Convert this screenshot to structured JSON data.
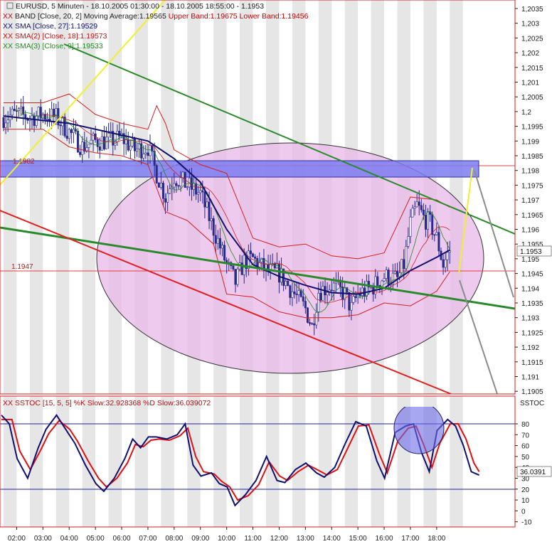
{
  "main": {
    "header": {
      "line1": "EURUSD, 5 Minuten - 18.10.2005 01:30:00 - 18.10.2005 18:55:00 - 1.1953",
      "line2a": "BAND [Close, 20, 2] Moving Average:1.19565",
      "line2b": "Upper Band:1.19675 Lower Band:1.19456",
      "line3": "SMA [Close, 27]:1.19529",
      "line4": "SMA(2) [Close, 18]:1.19573",
      "line5": "SMA(3) [Close, 9]:1.19533"
    },
    "price_tags": {
      "last": "1.1953",
      "zone": "1.1982",
      "support": "1.1947"
    }
  },
  "stoch": {
    "header": "SSTOC [15, 5, 5] %K Slow:32.928368 %D Slow:36.039072",
    "axis_title": "SSTOC",
    "value_tag": "36.0391"
  },
  "colors": {
    "up_candle": "#2a2a8a",
    "down_candle": "#2a2a8a",
    "bollinger": "#d02020",
    "sma27": "#10106e",
    "sma18": "#cc2020",
    "sma9": "#1e8a1e",
    "stoch_k": "#101070",
    "stoch_d": "#e01010",
    "ellipse_fill": "#e8b8e8",
    "zone_fill": "#7c7cf0",
    "trend_green": "#2a8a2a",
    "trend_red": "#e02020",
    "trend_yellow": "#f0f030",
    "trend_gray": "#8c8c8c"
  },
  "chart_data": [
    {
      "type": "candlestick",
      "title": "EURUSD, 5 Minuten - 18.10.2005 01:30:00 - 18.10.2005 18:55:00 - 1.1953",
      "x_tick_labels": [
        "02:00",
        "03:00",
        "04:00",
        "05:00",
        "06:00",
        "07:00",
        "08:00",
        "09:00",
        "10:00",
        "11:00",
        "12:00",
        "13:00",
        "14:00",
        "15:00",
        "16:00",
        "17:00",
        "18:00"
      ],
      "y_tick_labels": [
        "1,2035",
        "1,203",
        "1,2025",
        "1,202",
        "1,2015",
        "1,201",
        "1,2005",
        "1,2",
        "1,1995",
        "1,199",
        "1,1985",
        "1,198",
        "1,1975",
        "1,197",
        "1,1965",
        "1,196",
        "1,1955",
        "1,195",
        "1,1945",
        "1,194",
        "1,1935",
        "1,193",
        "1,1925",
        "1,192",
        "1,1915",
        "1,191",
        "1,1905"
      ],
      "ylim": [
        1.1905,
        1.2038
      ],
      "last_price": 1.1953,
      "levels": [
        1.1982,
        1.1947
      ],
      "zone": [
        1.19775,
        1.1983
      ],
      "close_path": [
        [
          "01:30",
          1.1998
        ],
        [
          "02:00",
          1.1999
        ],
        [
          "02:30",
          1.1998
        ],
        [
          "03:00",
          1.1999
        ],
        [
          "03:30",
          1.1998
        ],
        [
          "04:00",
          1.1993
        ],
        [
          "04:30",
          1.1988
        ],
        [
          "05:00",
          1.199
        ],
        [
          "05:30",
          1.199
        ],
        [
          "06:00",
          1.1991
        ],
        [
          "06:30",
          1.1987
        ],
        [
          "07:00",
          1.1988
        ],
        [
          "07:15",
          1.1981
        ],
        [
          "07:40",
          1.1971
        ],
        [
          "08:00",
          1.1978
        ],
        [
          "08:30",
          1.1975
        ],
        [
          "09:00",
          1.1972
        ],
        [
          "09:30",
          1.196
        ],
        [
          "10:00",
          1.1948
        ],
        [
          "10:20",
          1.1942
        ],
        [
          "10:40",
          1.1949
        ],
        [
          "11:00",
          1.195
        ],
        [
          "11:30",
          1.1946
        ],
        [
          "12:00",
          1.1945
        ],
        [
          "12:30",
          1.1939
        ],
        [
          "13:00",
          1.1933
        ],
        [
          "13:15",
          1.1927
        ],
        [
          "13:30",
          1.1939
        ],
        [
          "14:00",
          1.1941
        ],
        [
          "14:30",
          1.1938
        ],
        [
          "14:45",
          1.1933
        ],
        [
          "15:00",
          1.1938
        ],
        [
          "15:30",
          1.194
        ],
        [
          "16:00",
          1.1944
        ],
        [
          "16:30",
          1.1943
        ],
        [
          "16:45",
          1.1948
        ],
        [
          "17:00",
          1.1962
        ],
        [
          "17:15",
          1.1968
        ],
        [
          "17:30",
          1.1964
        ],
        [
          "17:45",
          1.1962
        ],
        [
          "18:00",
          1.1957
        ],
        [
          "18:15",
          1.1948
        ],
        [
          "18:30",
          1.1953
        ]
      ],
      "sma27_path": [
        [
          "01:30",
          1.19985
        ],
        [
          "04:00",
          1.1996
        ],
        [
          "05:30",
          1.1993
        ],
        [
          "07:00",
          1.199
        ],
        [
          "08:00",
          1.1984
        ],
        [
          "09:00",
          1.1976
        ],
        [
          "10:00",
          1.196
        ],
        [
          "11:00",
          1.1948
        ],
        [
          "12:00",
          1.1944
        ],
        [
          "13:00",
          1.1941
        ],
        [
          "14:00",
          1.19385
        ],
        [
          "15:00",
          1.1938
        ],
        [
          "16:00",
          1.194
        ],
        [
          "17:00",
          1.1946
        ],
        [
          "18:00",
          1.19505
        ],
        [
          "18:30",
          1.1953
        ]
      ],
      "bollinger_upper_path": [
        [
          "01:30",
          1.2003
        ],
        [
          "03:00",
          1.2003
        ],
        [
          "04:00",
          1.2006
        ],
        [
          "05:00",
          1.1999
        ],
        [
          "06:00",
          1.1996
        ],
        [
          "07:00",
          1.1994
        ],
        [
          "07:20",
          1.2002
        ],
        [
          "07:40",
          1.1996
        ],
        [
          "08:00",
          1.1987
        ],
        [
          "09:00",
          1.1982
        ],
        [
          "10:00",
          1.1979
        ],
        [
          "11:00",
          1.1957
        ],
        [
          "12:00",
          1.1954
        ],
        [
          "13:00",
          1.1955
        ],
        [
          "14:00",
          1.1951
        ],
        [
          "15:00",
          1.195
        ],
        [
          "16:00",
          1.1952
        ],
        [
          "17:00",
          1.1971
        ],
        [
          "18:00",
          1.197
        ],
        [
          "18:30",
          1.19675
        ]
      ],
      "bollinger_lower_path": [
        [
          "01:30",
          1.1994
        ],
        [
          "03:00",
          1.1994
        ],
        [
          "04:00",
          1.1988
        ],
        [
          "05:00",
          1.1986
        ],
        [
          "06:00",
          1.1985
        ],
        [
          "07:00",
          1.1982
        ],
        [
          "07:40",
          1.1966
        ],
        [
          "08:30",
          1.1963
        ],
        [
          "09:30",
          1.1955
        ],
        [
          "10:00",
          1.1938
        ],
        [
          "11:00",
          1.1937
        ],
        [
          "12:00",
          1.1932
        ],
        [
          "13:00",
          1.193
        ],
        [
          "14:00",
          1.193
        ],
        [
          "15:00",
          1.1931
        ],
        [
          "16:00",
          1.1935
        ],
        [
          "17:00",
          1.1934
        ],
        [
          "18:00",
          1.1939
        ],
        [
          "18:30",
          1.19456
        ]
      ]
    },
    {
      "type": "line",
      "title": "SSTOC [15, 5, 5] %K Slow:32.928368 %D Slow:36.039072",
      "y_tick_labels": [
        "80",
        "70",
        "60",
        "50",
        "40",
        "30",
        "20",
        "10",
        "0",
        "-10"
      ],
      "ylim": [
        -13,
        92
      ],
      "levels": [
        80,
        20
      ],
      "series": [
        {
          "name": "%K Slow",
          "values": [
            [
              0,
              88
            ],
            [
              0.3,
              80
            ],
            [
              0.6,
              48
            ],
            [
              1,
              30
            ],
            [
              1.4,
              58
            ],
            [
              1.7,
              75
            ],
            [
              2.1,
              88
            ],
            [
              2.5,
              73
            ],
            [
              2.8,
              62
            ],
            [
              3.2,
              42
            ],
            [
              3.6,
              25
            ],
            [
              3.9,
              18
            ],
            [
              4.3,
              30
            ],
            [
              4.7,
              48
            ],
            [
              5.0,
              66
            ],
            [
              5.3,
              58
            ],
            [
              5.6,
              68
            ],
            [
              5.9,
              68
            ],
            [
              6.3,
              66
            ],
            [
              6.7,
              70
            ],
            [
              7.0,
              80
            ],
            [
              7.3,
              42
            ],
            [
              7.6,
              32
            ],
            [
              8.0,
              35
            ],
            [
              8.3,
              25
            ],
            [
              8.6,
              22
            ],
            [
              8.9,
              5
            ],
            [
              9.3,
              15
            ],
            [
              9.7,
              28
            ],
            [
              10.1,
              50
            ],
            [
              10.5,
              28
            ],
            [
              10.8,
              26
            ],
            [
              11.2,
              38
            ],
            [
              11.6,
              44
            ],
            [
              12.0,
              35
            ],
            [
              12.3,
              31
            ],
            [
              12.7,
              40
            ],
            [
              13.1,
              62
            ],
            [
              13.5,
              82
            ],
            [
              13.9,
              78
            ],
            [
              14.3,
              46
            ],
            [
              14.6,
              30
            ],
            [
              15.0,
              72
            ],
            [
              15.4,
              78
            ],
            [
              15.7,
              80
            ],
            [
              16.0,
              54
            ],
            [
              16.3,
              36
            ],
            [
              16.6,
              74
            ],
            [
              17.0,
              84
            ],
            [
              17.3,
              78
            ],
            [
              17.6,
              60
            ],
            [
              17.9,
              36
            ],
            [
              18.2,
              32.9
            ]
          ]
        },
        {
          "name": "%D Slow",
          "values": [
            [
              0,
              84
            ],
            [
              0.4,
              84
            ],
            [
              0.7,
              55
            ],
            [
              1.1,
              38
            ],
            [
              1.5,
              56
            ],
            [
              1.8,
              71
            ],
            [
              2.2,
              83
            ],
            [
              2.6,
              75
            ],
            [
              2.9,
              64
            ],
            [
              3.3,
              46
            ],
            [
              3.7,
              30
            ],
            [
              4.0,
              22
            ],
            [
              4.4,
              30
            ],
            [
              4.8,
              44
            ],
            [
              5.1,
              61
            ],
            [
              5.4,
              59
            ],
            [
              5.7,
              65
            ],
            [
              6.0,
              66
            ],
            [
              6.4,
              65
            ],
            [
              6.8,
              69
            ],
            [
              7.1,
              76
            ],
            [
              7.4,
              50
            ],
            [
              7.7,
              36
            ],
            [
              8.1,
              34
            ],
            [
              8.4,
              27
            ],
            [
              8.7,
              22
            ],
            [
              9.0,
              10
            ],
            [
              9.4,
              14
            ],
            [
              9.8,
              24
            ],
            [
              10.2,
              45
            ],
            [
              10.6,
              32
            ],
            [
              10.9,
              28
            ],
            [
              11.3,
              36
            ],
            [
              11.7,
              42
            ],
            [
              12.1,
              37
            ],
            [
              12.4,
              33
            ],
            [
              12.8,
              38
            ],
            [
              13.2,
              58
            ],
            [
              13.6,
              78
            ],
            [
              14.0,
              79
            ],
            [
              14.4,
              52
            ],
            [
              14.7,
              35
            ],
            [
              15.1,
              64
            ],
            [
              15.5,
              76
            ],
            [
              15.8,
              78
            ],
            [
              16.1,
              60
            ],
            [
              16.4,
              40
            ],
            [
              16.7,
              62
            ],
            [
              17.1,
              80
            ],
            [
              17.4,
              80
            ],
            [
              17.7,
              66
            ],
            [
              18.0,
              44
            ],
            [
              18.2,
              36.0
            ]
          ]
        }
      ]
    }
  ]
}
